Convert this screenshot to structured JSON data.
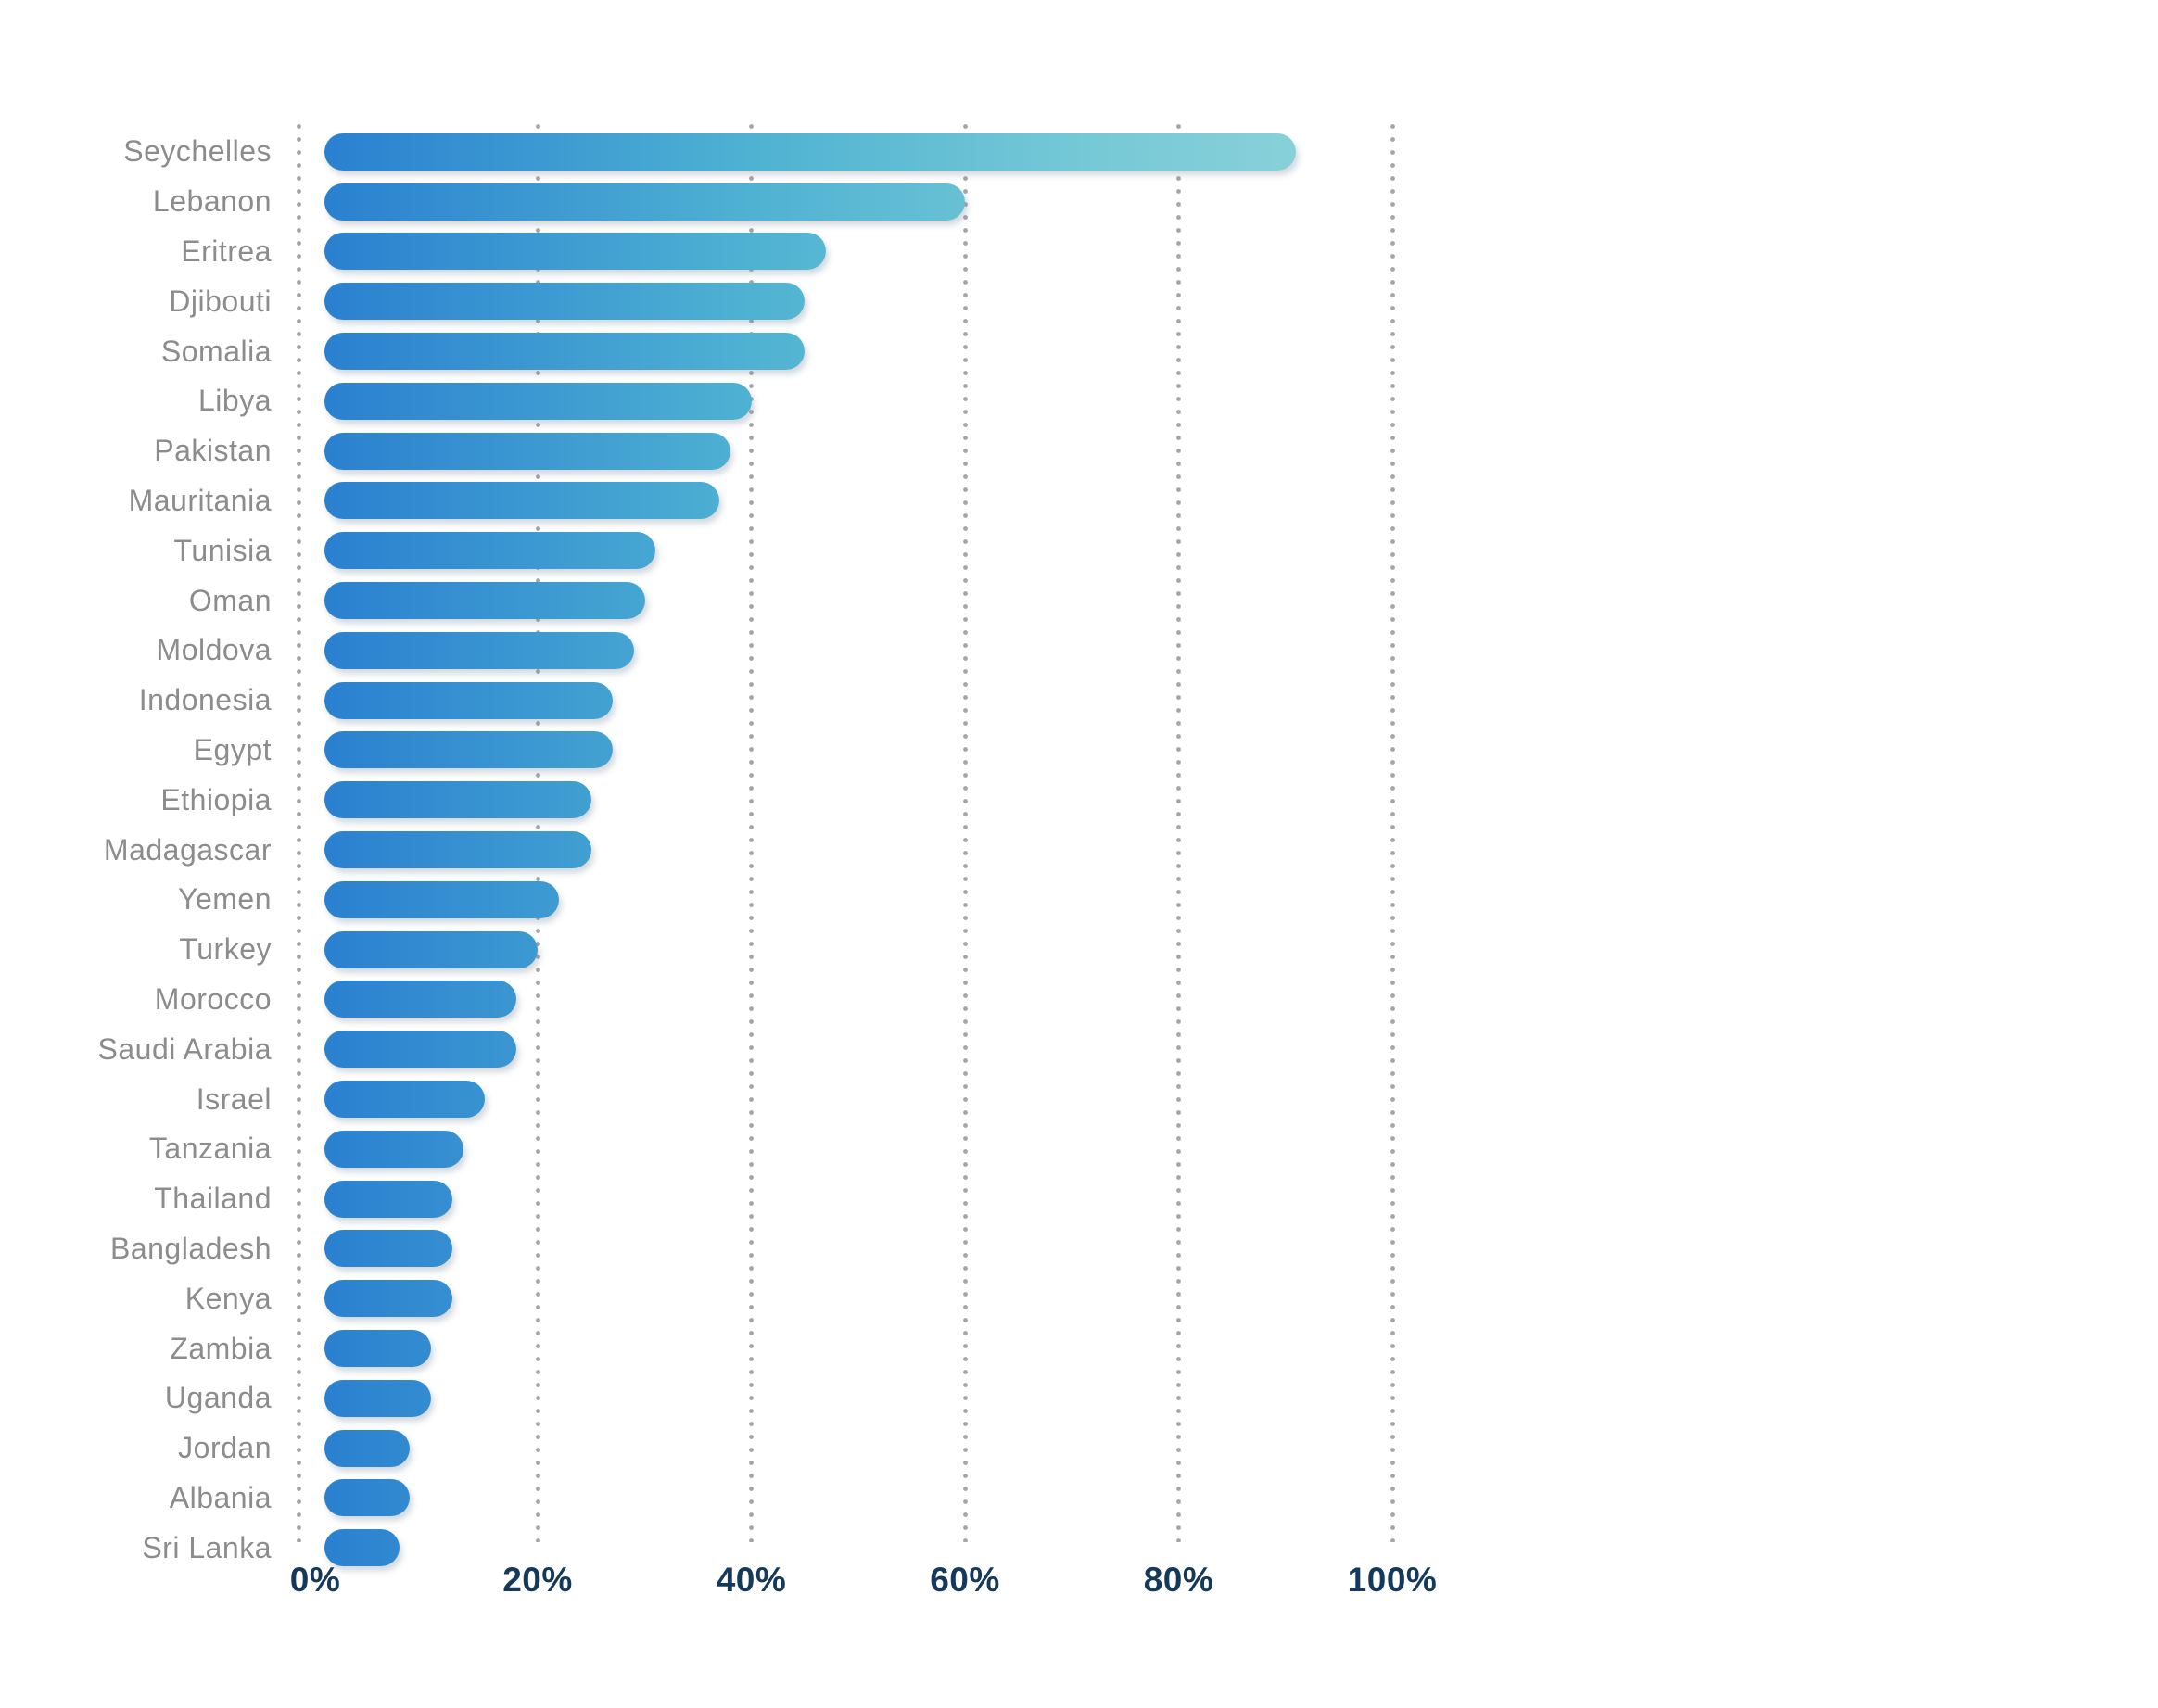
{
  "chart_data": {
    "type": "bar",
    "orientation": "horizontal",
    "title": "",
    "xlabel": "",
    "ylabel": "",
    "categories": [
      "Seychelles",
      "Lebanon",
      "Eritrea",
      "Djibouti",
      "Somalia",
      "Libya",
      "Pakistan",
      "Mauritania",
      "Tunisia",
      "Oman",
      "Moldova",
      "Indonesia",
      "Egypt",
      "Ethiopia",
      "Madagascar",
      "Yemen",
      "Turkey",
      "Morocco",
      "Saudi Arabia",
      "Israel",
      "Tanzania",
      "Thailand",
      "Bangladesh",
      "Kenya",
      "Zambia",
      "Uganda",
      "Jordan",
      "Albania",
      "Sri Lanka"
    ],
    "values": [
      91,
      60,
      47,
      45,
      45,
      40,
      38,
      37,
      31,
      30,
      29,
      27,
      27,
      25,
      25,
      22,
      20,
      18,
      18,
      15,
      13,
      12,
      12,
      12,
      10,
      10,
      8,
      8,
      7
    ],
    "value_unit": "%",
    "xlim": [
      0,
      100
    ],
    "x_tick_values": [
      0,
      20,
      40,
      60,
      80,
      100
    ],
    "x_tick_labels": [
      "0%",
      "20%",
      "40%",
      "60%",
      "80%",
      "100%"
    ],
    "grid": "dotted-vertical",
    "legend": "none",
    "colors": {
      "bar_gradient_start": "#2a80d0",
      "bar_gradient_mid": "#4fb2d2",
      "bar_gradient_mid2": "#74c8d6",
      "bar_gradient_end": "#90d4da",
      "axis_label": "#14395a",
      "category_label": "#8c8c8c",
      "gridline": "#a6a6a6",
      "background": "#ffffff"
    }
  }
}
